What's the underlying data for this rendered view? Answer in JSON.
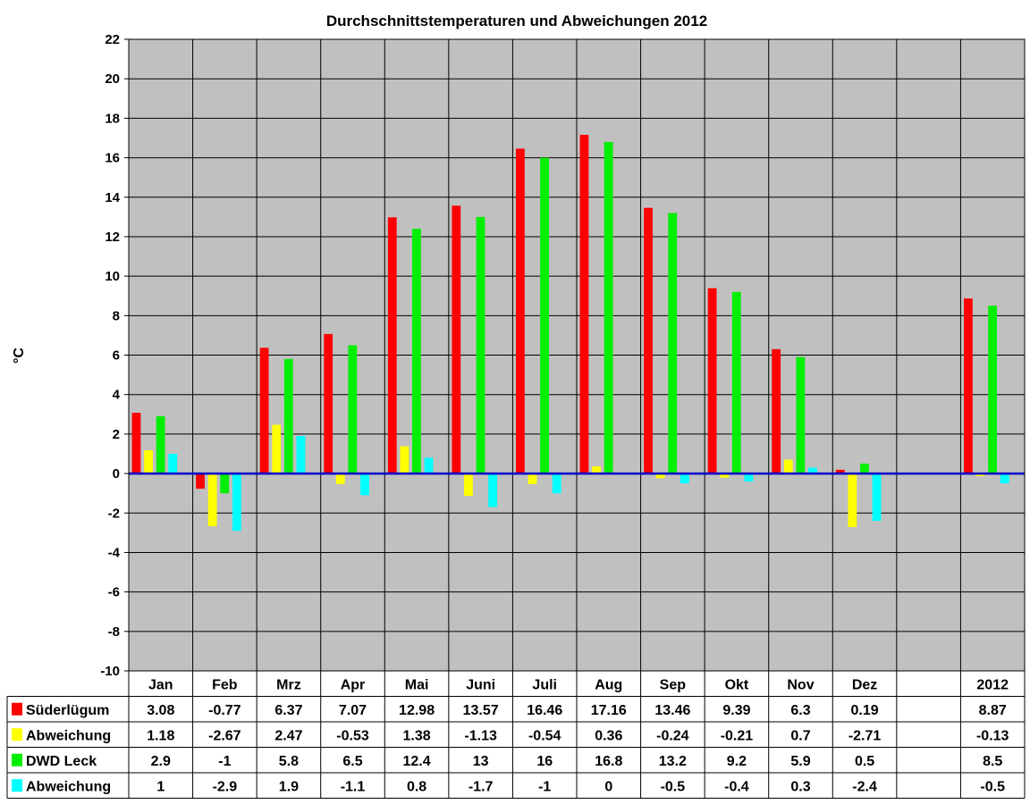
{
  "chart_data": {
    "type": "bar",
    "title": "Durchschnittstemperaturen und Abweichungen 2012",
    "ylabel": "°C",
    "xlabel": "",
    "ylim": [
      -10,
      22
    ],
    "ytick_step": 2,
    "grid": true,
    "legend": "table-bottom",
    "categories": [
      "Jan",
      "Feb",
      "Mrz",
      "Apr",
      "Mai",
      "Juni",
      "Juli",
      "Aug",
      "Sep",
      "Okt",
      "Nov",
      "Dez",
      "",
      "2012"
    ],
    "series": [
      {
        "name": "Süderlügum",
        "color": "#ff0000",
        "values": [
          3.08,
          -0.77,
          6.37,
          7.07,
          12.98,
          13.57,
          16.46,
          17.16,
          13.46,
          9.39,
          6.3,
          0.19,
          null,
          8.87
        ]
      },
      {
        "name": "Abweichung",
        "color": "#ffff00",
        "values": [
          1.18,
          -2.67,
          2.47,
          -0.53,
          1.38,
          -1.13,
          -0.54,
          0.36,
          -0.24,
          -0.21,
          0.7,
          -2.71,
          null,
          -0.13
        ]
      },
      {
        "name": "DWD Leck",
        "color": "#00ee00",
        "values": [
          2.9,
          -1,
          5.8,
          6.5,
          12.4,
          13,
          16,
          16.8,
          13.2,
          9.2,
          5.9,
          0.5,
          null,
          8.5
        ]
      },
      {
        "name": "Abweichung",
        "color": "#00ffff",
        "values": [
          1,
          -2.9,
          1.9,
          -1.1,
          0.8,
          -1.7,
          -1,
          0,
          -0.5,
          -0.4,
          0.3,
          -2.4,
          null,
          -0.5
        ]
      }
    ],
    "colors": {
      "plot_bg": "#c0c0c0",
      "zero_line": "#0000cc",
      "grid": "#000000"
    }
  }
}
